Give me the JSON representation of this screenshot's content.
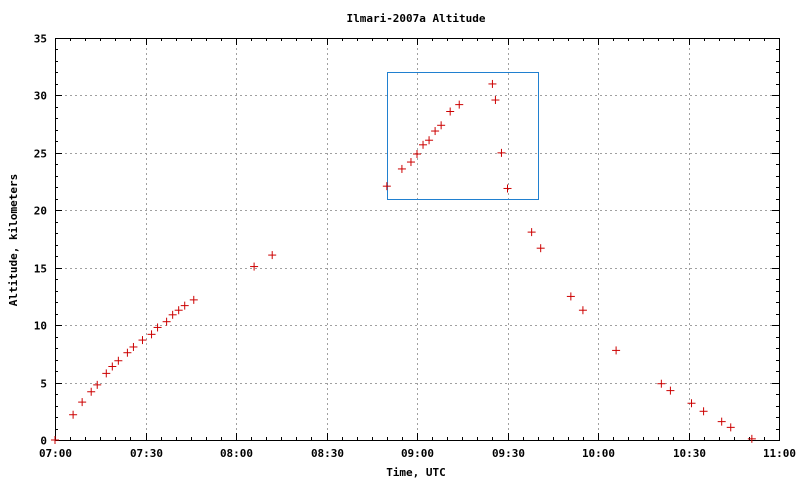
{
  "chart_data": {
    "type": "scatter",
    "title": "Ilmari-2007a  Altitude",
    "xlabel": "Time, UTC",
    "ylabel": "Altitude, kilometers",
    "xlim": [
      "07:00",
      "11:00"
    ],
    "ylim": [
      0,
      35
    ],
    "x_ticks": [
      "07:00",
      "07:30",
      "08:00",
      "08:30",
      "09:00",
      "09:30",
      "10:00",
      "10:30",
      "11:00"
    ],
    "y_ticks": [
      "0",
      "5",
      "10",
      "15",
      "20",
      "25",
      "30",
      "35"
    ],
    "grid": true,
    "marker": "+",
    "colors": {
      "points": "#cc0000",
      "highlight": "#2080d0"
    },
    "highlight_region": {
      "x": [
        "08:50",
        "09:40"
      ],
      "y": [
        21,
        32
      ]
    },
    "series": [
      {
        "points": [
          [
            "07:00",
            0.0
          ],
          [
            "07:06",
            2.2
          ],
          [
            "07:09",
            3.3
          ],
          [
            "07:12",
            4.2
          ],
          [
            "07:14",
            4.8
          ],
          [
            "07:17",
            5.8
          ],
          [
            "07:19",
            6.4
          ],
          [
            "07:21",
            6.9
          ],
          [
            "07:24",
            7.6
          ],
          [
            "07:26",
            8.1
          ],
          [
            "07:29",
            8.7
          ],
          [
            "07:32",
            9.2
          ],
          [
            "07:34",
            9.8
          ],
          [
            "07:37",
            10.3
          ],
          [
            "07:39",
            10.9
          ],
          [
            "07:41",
            11.3
          ],
          [
            "07:43",
            11.7
          ],
          [
            "07:46",
            12.2
          ],
          [
            "08:06",
            15.1
          ],
          [
            "08:12",
            16.1
          ],
          [
            "08:50",
            22.1
          ],
          [
            "08:55",
            23.6
          ],
          [
            "08:58",
            24.2
          ],
          [
            "09:00",
            24.9
          ],
          [
            "09:02",
            25.7
          ],
          [
            "09:04",
            26.1
          ],
          [
            "09:06",
            26.9
          ],
          [
            "09:08",
            27.4
          ],
          [
            "09:11",
            28.6
          ],
          [
            "09:14",
            29.2
          ],
          [
            "09:25",
            31.0
          ],
          [
            "09:26",
            29.6
          ],
          [
            "09:28",
            25.0
          ],
          [
            "09:30",
            21.9
          ],
          [
            "09:38",
            18.1
          ],
          [
            "09:41",
            16.7
          ],
          [
            "09:51",
            12.5
          ],
          [
            "09:55",
            11.3
          ],
          [
            "10:06",
            7.8
          ],
          [
            "10:21",
            4.9
          ],
          [
            "10:24",
            4.3
          ],
          [
            "10:31",
            3.2
          ],
          [
            "10:35",
            2.5
          ],
          [
            "10:41",
            1.6
          ],
          [
            "10:44",
            1.1
          ],
          [
            "10:51",
            0.1
          ]
        ]
      }
    ]
  }
}
